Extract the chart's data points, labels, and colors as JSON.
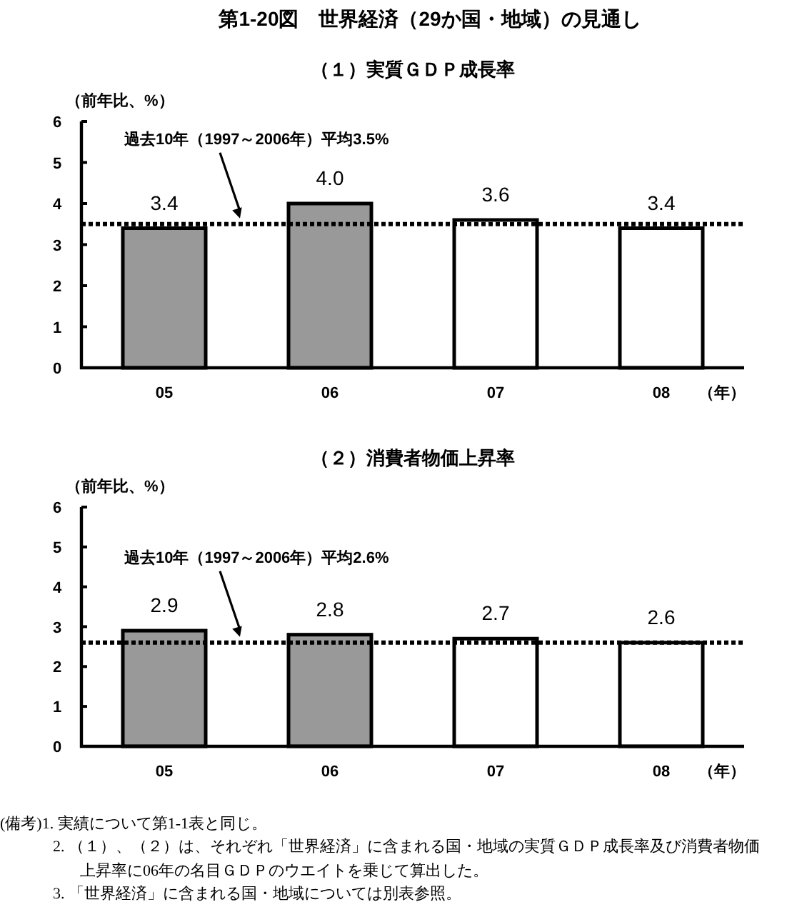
{
  "chart_data": [
    {
      "type": "bar",
      "title": "第1-20図　世界経済（29か国・地域）の見通し",
      "subtitle": "（１）実質ＧＤＰ成長率",
      "ylabel": "（前年比、%）",
      "xlabel": "（年）",
      "categories": [
        "05",
        "06",
        "07",
        "08"
      ],
      "values": [
        3.4,
        4.0,
        3.6,
        3.4
      ],
      "colors": [
        "#999999",
        "#999999",
        "#ffffff",
        "#ffffff"
      ],
      "value_labels": [
        "3.4",
        "4.0",
        "3.6",
        "3.4"
      ],
      "ylim": [
        0,
        6
      ],
      "yticks": [
        0,
        1,
        2,
        3,
        4,
        5,
        6
      ],
      "ref_lines": [
        {
          "axis": "y",
          "value": 3.5,
          "label": "過去10年（1997～2006年）平均3.5%",
          "color": "#000000",
          "line_style": "dotted"
        }
      ]
    },
    {
      "type": "bar",
      "title": "（２）消費者物価上昇率",
      "ylabel": "（前年比、%）",
      "xlabel": "（年）",
      "categories": [
        "05",
        "06",
        "07",
        "08"
      ],
      "values": [
        2.9,
        2.8,
        2.7,
        2.6
      ],
      "colors": [
        "#999999",
        "#999999",
        "#ffffff",
        "#ffffff"
      ],
      "value_labels": [
        "2.9",
        "2.8",
        "2.7",
        "2.6"
      ],
      "ylim": [
        0,
        6
      ],
      "yticks": [
        0,
        1,
        2,
        3,
        4,
        5,
        6
      ],
      "ref_lines": [
        {
          "axis": "y",
          "value": 2.6,
          "label": "過去10年（1997～2006年）平均2.6%",
          "color": "#000000",
          "line_style": "dotted"
        }
      ],
      "annotations": [
        "(備考)1. 実績について第1-1表と同じ。",
        "2. （１）、（２）は、それぞれ「世界経済」に含まれる国・地域の実質ＧＤＰ成長率及び消費者物価上昇率に06年の名目ＧＤＰのウエイトを乗じて算出した。",
        "3. 「世界経済」に含まれる国・地域については別表参照。"
      ]
    }
  ]
}
